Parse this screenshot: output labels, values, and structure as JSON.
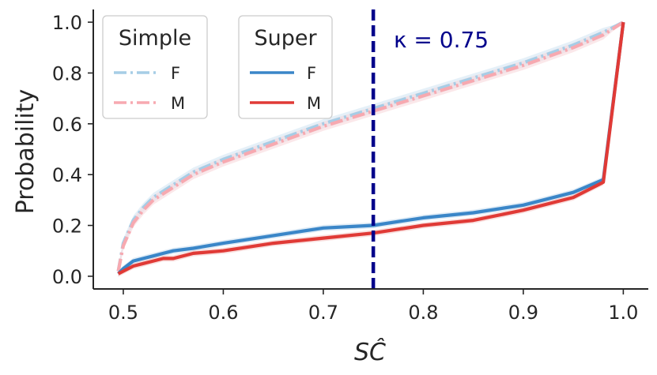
{
  "chart_data": {
    "type": "line",
    "xlabel": "SĈ",
    "ylabel": "Probability",
    "xlim": [
      0.47,
      1.025
    ],
    "ylim": [
      -0.05,
      1.05
    ],
    "xticks": [
      0.5,
      0.6,
      0.7,
      0.8,
      0.9,
      1.0
    ],
    "xtick_labels": [
      "0.5",
      "0.6",
      "0.7",
      "0.8",
      "0.9",
      "1.0"
    ],
    "yticks": [
      0.0,
      0.2,
      0.4,
      0.6,
      0.8,
      1.0
    ],
    "ytick_labels": [
      "0.0",
      "0.2",
      "0.4",
      "0.6",
      "0.8",
      "1.0"
    ],
    "vline": {
      "x": 0.75,
      "label": "κ = 0.75",
      "color": "#00008b"
    },
    "legends": [
      {
        "title": "Simple",
        "entries": [
          {
            "label": "F",
            "series": "Simple F"
          },
          {
            "label": "M",
            "series": "Simple M"
          }
        ]
      },
      {
        "title": "Super",
        "entries": [
          {
            "label": "F",
            "series": "Super F"
          },
          {
            "label": "M",
            "series": "Super M"
          }
        ]
      }
    ],
    "series": [
      {
        "name": "Simple F",
        "style": "dashdot",
        "color": "#a6cde6",
        "band": "#cfe3f2",
        "x": [
          0.495,
          0.5,
          0.51,
          0.52,
          0.53,
          0.55,
          0.57,
          0.6,
          0.65,
          0.7,
          0.75,
          0.8,
          0.85,
          0.9,
          0.95,
          0.98,
          1.0
        ],
        "y": [
          0.02,
          0.13,
          0.22,
          0.27,
          0.31,
          0.36,
          0.41,
          0.46,
          0.53,
          0.6,
          0.66,
          0.72,
          0.78,
          0.84,
          0.91,
          0.96,
          1.0
        ]
      },
      {
        "name": "Simple M",
        "style": "dashdot",
        "color": "#f7a9b0",
        "band": "#f8d5d8",
        "x": [
          0.495,
          0.5,
          0.51,
          0.52,
          0.53,
          0.55,
          0.57,
          0.6,
          0.65,
          0.7,
          0.75,
          0.8,
          0.85,
          0.9,
          0.95,
          0.98,
          1.0
        ],
        "y": [
          0.02,
          0.12,
          0.21,
          0.26,
          0.3,
          0.35,
          0.4,
          0.45,
          0.52,
          0.59,
          0.65,
          0.71,
          0.77,
          0.83,
          0.9,
          0.95,
          1.0
        ]
      },
      {
        "name": "Super F",
        "style": "solid",
        "color": "#3a86c8",
        "band": "#c7dcef",
        "x": [
          0.495,
          0.5,
          0.51,
          0.52,
          0.53,
          0.54,
          0.55,
          0.57,
          0.6,
          0.65,
          0.7,
          0.75,
          0.8,
          0.85,
          0.9,
          0.95,
          0.98,
          1.0
        ],
        "y": [
          0.01,
          0.03,
          0.06,
          0.07,
          0.08,
          0.09,
          0.1,
          0.11,
          0.13,
          0.16,
          0.19,
          0.2,
          0.23,
          0.25,
          0.28,
          0.33,
          0.38,
          1.0
        ]
      },
      {
        "name": "Super M",
        "style": "solid",
        "color": "#e03a36",
        "band": "#f4c6c4",
        "x": [
          0.495,
          0.5,
          0.51,
          0.52,
          0.53,
          0.54,
          0.55,
          0.57,
          0.6,
          0.65,
          0.7,
          0.75,
          0.8,
          0.85,
          0.9,
          0.95,
          0.98,
          1.0
        ],
        "y": [
          0.01,
          0.02,
          0.04,
          0.05,
          0.06,
          0.07,
          0.07,
          0.09,
          0.1,
          0.13,
          0.15,
          0.17,
          0.2,
          0.22,
          0.26,
          0.31,
          0.37,
          1.0
        ]
      }
    ]
  }
}
